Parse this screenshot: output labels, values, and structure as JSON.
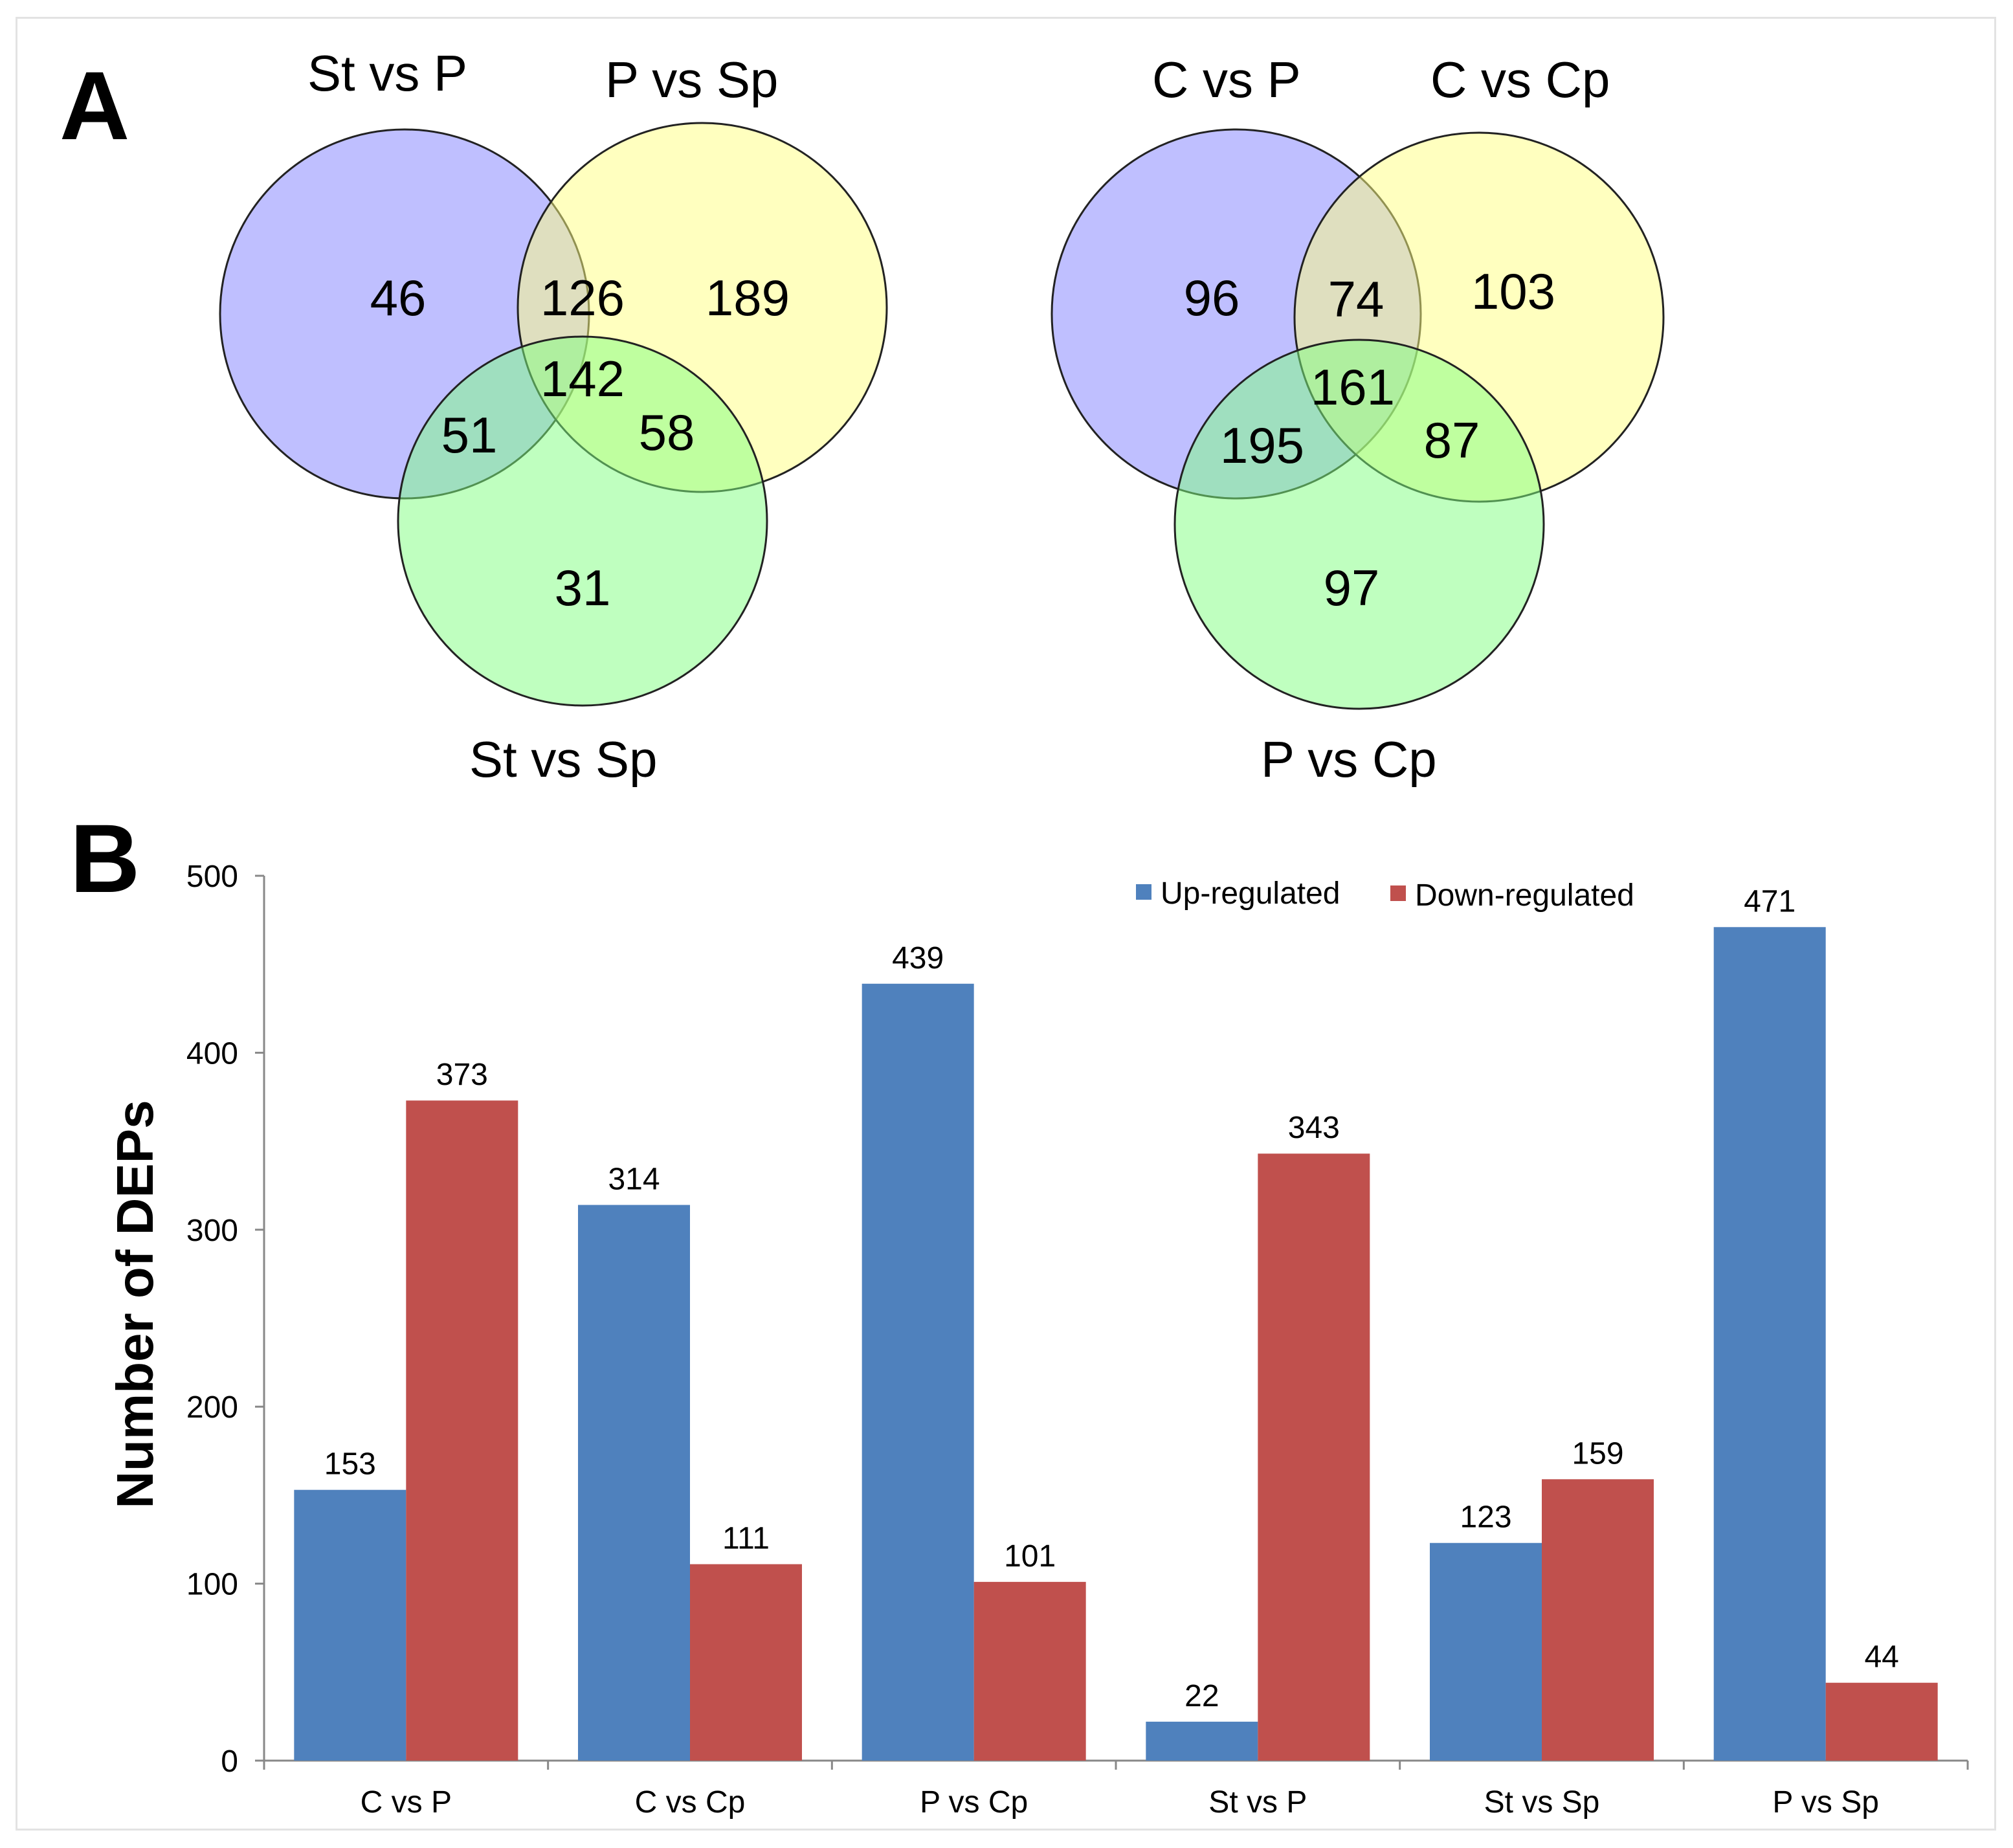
{
  "panel_a": {
    "letter": "A",
    "venns": [
      {
        "labels": {
          "top_left": "St vs P",
          "top_right": "P vs Sp",
          "bottom": "St vs Sp"
        },
        "regions": {
          "a_only": "46",
          "ab": "126",
          "b_only": "189",
          "abc": "142",
          "ac": "51",
          "bc": "58",
          "c_only": "31"
        }
      },
      {
        "labels": {
          "top_left": "C vs P",
          "top_right": "C vs Cp",
          "bottom": "P vs Cp"
        },
        "regions": {
          "a_only": "96",
          "ab": "74",
          "b_only": "103",
          "abc": "161",
          "ac": "195",
          "bc": "87",
          "c_only": "97"
        }
      }
    ],
    "colors": {
      "circle_a": "#7f7fff",
      "circle_b": "#ffff7f",
      "circle_c": "#7fff7f"
    }
  },
  "panel_b": {
    "letter": "B",
    "chart_data": {
      "type": "bar",
      "title": "",
      "xlabel": "",
      "ylabel": "Number of DEPs",
      "ylim": [
        0,
        500
      ],
      "yticks": [
        0,
        100,
        200,
        300,
        400,
        500
      ],
      "categories": [
        "C vs P",
        "C vs Cp",
        "P vs Cp",
        "St vs P",
        "St vs Sp",
        "P vs Sp"
      ],
      "series": [
        {
          "name": "Up-regulated",
          "color": "#4f81bd",
          "values": [
            153,
            314,
            439,
            22,
            123,
            471
          ]
        },
        {
          "name": "Down-regulated",
          "color": "#c0504d",
          "values": [
            373,
            111,
            101,
            343,
            159,
            44
          ]
        }
      ],
      "legend": "top-right",
      "grid": false
    }
  }
}
